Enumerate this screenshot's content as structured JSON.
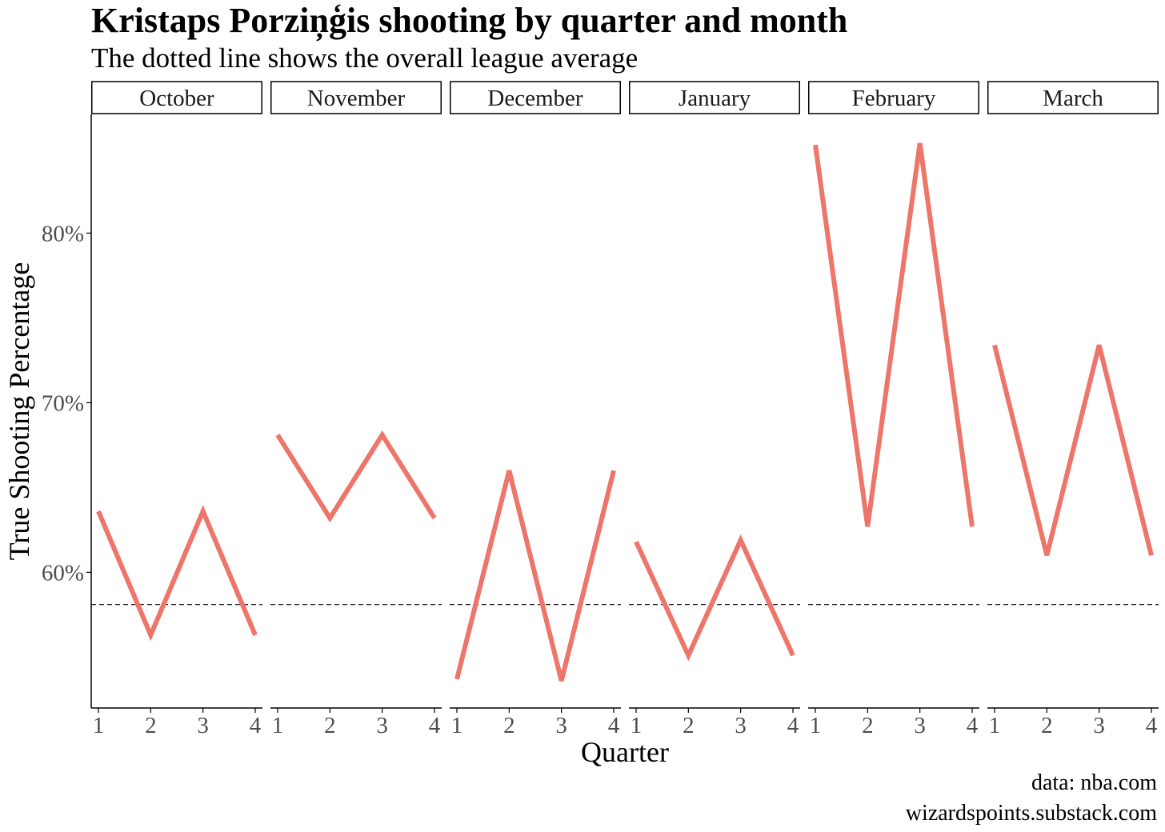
{
  "chart_data": {
    "type": "line",
    "title": "Kristaps Porziņģis shooting by quarter and month",
    "subtitle": "The dotted line shows the overall league average",
    "xlabel": "Quarter",
    "ylabel": "True Shooting Percentage",
    "x": [
      "1",
      "2",
      "3",
      "4"
    ],
    "y_ticks": [
      "60%",
      "70%",
      "80%"
    ],
    "y_tick_values": [
      60,
      70,
      80
    ],
    "ylim": [
      52,
      87
    ],
    "reference_line": {
      "value": 58.1,
      "style": "dashed"
    },
    "line_color": "#EE756A",
    "grid": false,
    "facets": [
      {
        "month": "October",
        "values": [
          63.6,
          56.3,
          63.6,
          56.3
        ]
      },
      {
        "month": "November",
        "values": [
          68.1,
          63.2,
          68.1,
          63.2
        ]
      },
      {
        "month": "December",
        "values": [
          53.7,
          66.0,
          53.6,
          66.0
        ]
      },
      {
        "month": "January",
        "values": [
          61.8,
          55.1,
          61.9,
          55.1
        ]
      },
      {
        "month": "February",
        "values": [
          85.2,
          62.7,
          85.3,
          62.7
        ]
      },
      {
        "month": "March",
        "values": [
          73.4,
          61.0,
          73.4,
          61.0
        ]
      }
    ]
  },
  "caption": {
    "line1": "data: nba.com",
    "line2": "wizardspoints.substack.com"
  }
}
